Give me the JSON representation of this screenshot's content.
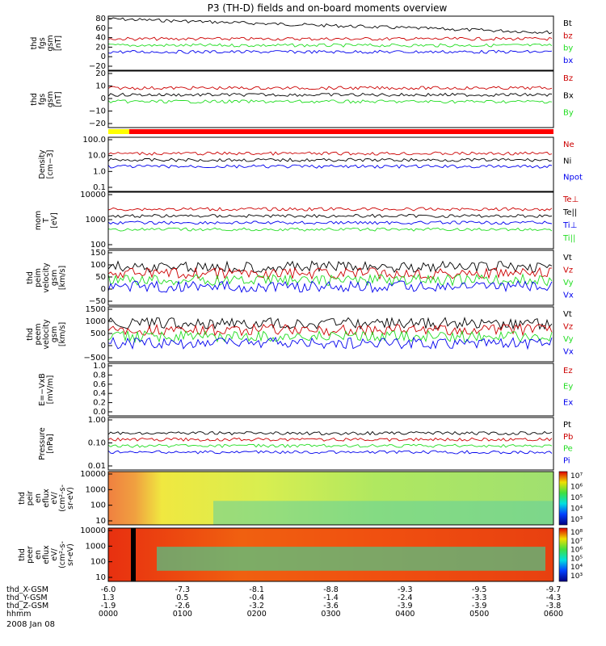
{
  "title": "P3 (TH-D) fields and on-board moments overview",
  "date_label": "2008 Jan 08",
  "colors": {
    "black": "#000000",
    "red": "#cc0000",
    "green": "#22dd22",
    "blue": "#0000ee"
  },
  "chart_data": [
    {
      "type": "line",
      "ylabel": [
        "thd",
        "fgs",
        "gsm",
        "[nT]"
      ],
      "yticks": [
        "80",
        "60",
        "40",
        "20",
        "0",
        "−20"
      ],
      "legend": [
        {
          "name": "Bt",
          "color": "black"
        },
        {
          "name": "bz",
          "color": "red"
        },
        {
          "name": "by",
          "color": "green"
        },
        {
          "name": "bx",
          "color": "blue"
        }
      ]
    },
    {
      "type": "line",
      "ylabel": [
        "thd",
        "fgs",
        "gsm",
        "[nT]"
      ],
      "yticks": [
        "20",
        "10",
        "0",
        "−10",
        "−20"
      ],
      "legend": [
        {
          "name": "Bz",
          "color": "red"
        },
        {
          "name": "Bx",
          "color": "black"
        },
        {
          "name": "By",
          "color": "green"
        }
      ]
    },
    {
      "type": "line",
      "ylabel": [
        "Density",
        "[cm−3]"
      ],
      "yticks": [
        "100.0",
        "10.0",
        "1.0",
        "0.1"
      ],
      "legend": [
        {
          "name": "Ne",
          "color": "red"
        },
        {
          "name": "Ni",
          "color": "black"
        },
        {
          "name": "Npot",
          "color": "blue"
        }
      ]
    },
    {
      "type": "line",
      "ylabel": [
        "mom",
        "T",
        "[eV]"
      ],
      "yticks": [
        "10000",
        "1000",
        "100"
      ],
      "legend": [
        {
          "name": "Te⊥",
          "color": "red"
        },
        {
          "name": "Te||",
          "color": "black"
        },
        {
          "name": "Ti⊥",
          "color": "blue"
        },
        {
          "name": "Ti||",
          "color": "green"
        }
      ]
    },
    {
      "type": "line",
      "ylabel": [
        "thd",
        "peim",
        "velocity",
        "gsm",
        "[km/s]"
      ],
      "yticks": [
        "150",
        "100",
        "50",
        "0",
        "−50"
      ],
      "legend": [
        {
          "name": "Vt",
          "color": "black"
        },
        {
          "name": "Vz",
          "color": "red"
        },
        {
          "name": "Vy",
          "color": "green"
        },
        {
          "name": "Vx",
          "color": "blue"
        }
      ]
    },
    {
      "type": "line",
      "ylabel": [
        "thd",
        "peem",
        "velocity",
        "gsm",
        "[km/s]"
      ],
      "yticks": [
        "1500",
        "1000",
        "500",
        "0",
        "−500"
      ],
      "legend": [
        {
          "name": "Vt",
          "color": "black"
        },
        {
          "name": "Vz",
          "color": "red"
        },
        {
          "name": "Vy",
          "color": "green"
        },
        {
          "name": "Vx",
          "color": "blue"
        }
      ]
    },
    {
      "type": "line",
      "ylabel": [
        "E=−VxB",
        "[mV/m]"
      ],
      "yticks": [
        "1.0",
        "0.8",
        "0.6",
        "0.4",
        "0.2",
        "0.0"
      ],
      "legend": [
        {
          "name": "Ez",
          "color": "red"
        },
        {
          "name": "Ey",
          "color": "green"
        },
        {
          "name": "Ex",
          "color": "blue"
        }
      ]
    },
    {
      "type": "line",
      "ylabel": [
        "Pressure",
        "[nPa]"
      ],
      "yticks": [
        "1.00",
        "0.10",
        "0.01"
      ],
      "legend": [
        {
          "name": "Pt",
          "color": "black"
        },
        {
          "name": "Pb",
          "color": "red"
        },
        {
          "name": "Pe",
          "color": "green"
        },
        {
          "name": "Pi",
          "color": "blue"
        }
      ]
    },
    {
      "type": "heatmap",
      "ylabel": [
        "thd",
        "peir",
        "en",
        "eflux",
        "eV/",
        "(cm²-s-",
        "sr-eV)"
      ],
      "yticks": [
        "10000",
        "1000",
        "100",
        "10"
      ],
      "cbar_ticks": [
        "10⁷",
        "10⁶",
        "10⁵",
        "10⁴",
        "10³"
      ]
    },
    {
      "type": "heatmap",
      "ylabel": [
        "thd",
        "peer",
        "en",
        "eflux",
        "eV/",
        "(cm²-s-",
        "sr-eV)"
      ],
      "yticks": [
        "10000",
        "1000",
        "100",
        "10"
      ],
      "cbar_ticks": [
        "10⁸",
        "10⁷",
        "10⁶",
        "10⁵",
        "10⁴",
        "10³"
      ]
    }
  ],
  "axis_rows": [
    {
      "label": "thd_X-GSM",
      "values": [
        "-6.0",
        "-7.3",
        "-8.1",
        "-8.8",
        "-9.3",
        "-9.5",
        "-9.7"
      ]
    },
    {
      "label": "thd_Y-GSM",
      "values": [
        "1.3",
        "0.5",
        "-0.4",
        "-1.4",
        "-2.4",
        "-3.3",
        "-4.3"
      ]
    },
    {
      "label": "thd_Z-GSM",
      "values": [
        "-1.9",
        "-2.6",
        "-3.2",
        "-3.6",
        "-3.9",
        "-3.9",
        "-3.8"
      ]
    },
    {
      "label": "hhmm",
      "values": [
        "0000",
        "0100",
        "0200",
        "0300",
        "0400",
        "0500",
        "0600"
      ]
    }
  ]
}
